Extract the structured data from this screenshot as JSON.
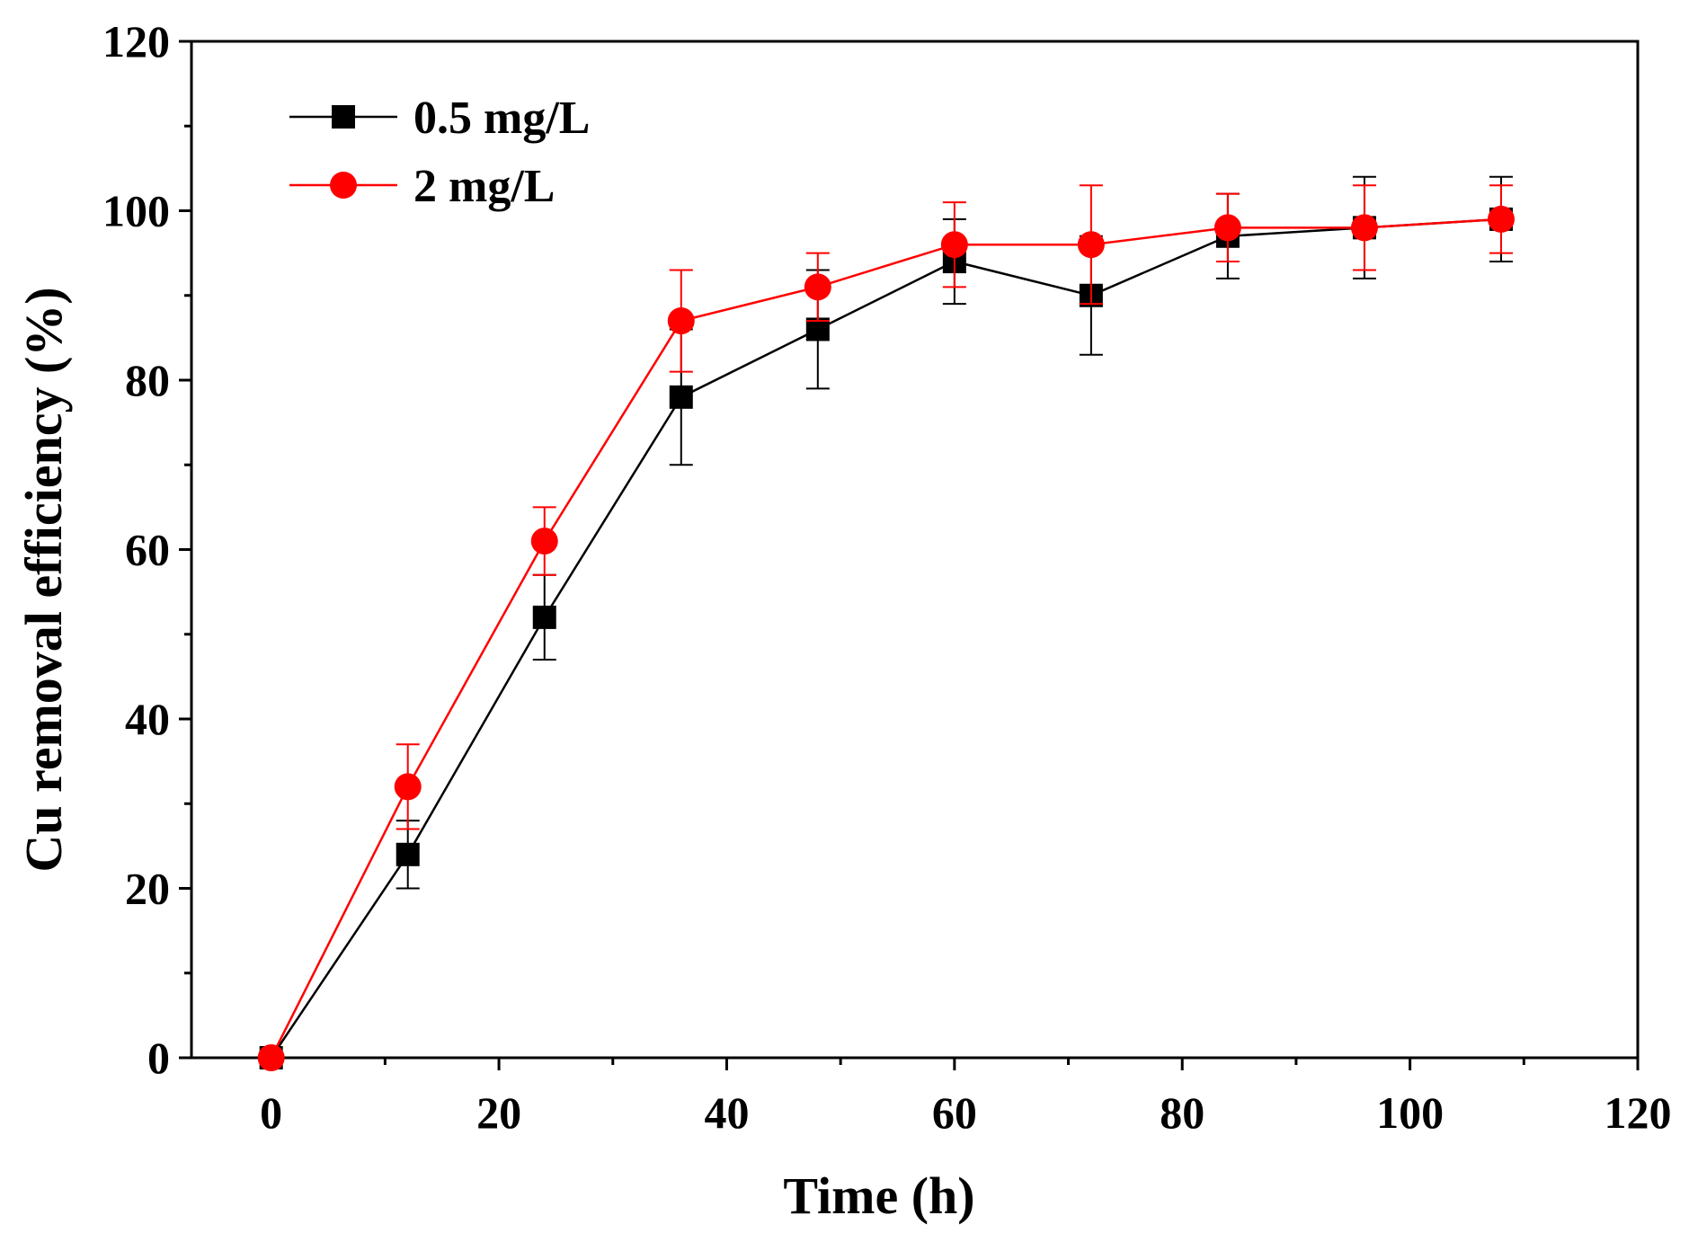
{
  "chart_data": {
    "type": "line",
    "title": "",
    "xlabel": "Time (h)",
    "ylabel": "Cu removal efficiency (%)",
    "xlim": [
      -7,
      120
    ],
    "ylim": [
      0,
      120
    ],
    "xticks": [
      0,
      20,
      40,
      60,
      80,
      100,
      120
    ],
    "yticks": [
      0,
      20,
      40,
      60,
      80,
      100,
      120
    ],
    "x_minor_step": 10,
    "y_minor_step": 10,
    "grid": false,
    "legend_position": "top-left",
    "x": [
      0,
      12,
      24,
      36,
      48,
      60,
      72,
      84,
      96,
      108
    ],
    "series": [
      {
        "name": "0.5 mg/L",
        "color": "#000000",
        "marker": "square",
        "values": [
          0,
          24,
          52,
          78,
          86,
          94,
          90,
          97,
          98,
          99
        ],
        "errors": [
          0,
          4,
          5,
          8,
          7,
          5,
          7,
          5,
          6,
          5
        ]
      },
      {
        "name": "2 mg/L",
        "color": "#ff0000",
        "marker": "circle",
        "values": [
          0,
          32,
          61,
          87,
          91,
          96,
          96,
          98,
          98,
          99
        ],
        "errors": [
          0,
          5,
          4,
          6,
          4,
          5,
          7,
          4,
          5,
          4
        ]
      }
    ]
  }
}
